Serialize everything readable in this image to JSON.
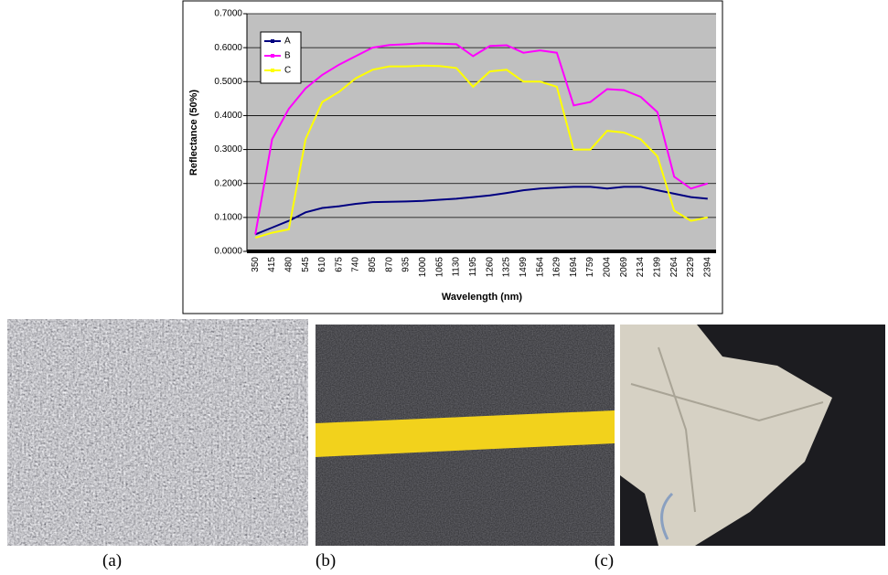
{
  "chart_data": {
    "type": "line",
    "y_label": "Reflectance (50%)",
    "x_label": "Wavelength (nm)",
    "categories": [
      "350",
      "415",
      "480",
      "545",
      "610",
      "675",
      "740",
      "805",
      "870",
      "935",
      "1000",
      "1065",
      "1130",
      "1195",
      "1260",
      "1325",
      "1499",
      "1564",
      "1629",
      "1694",
      "1759",
      "2004",
      "2069",
      "2134",
      "2199",
      "2264",
      "2329",
      "2394"
    ],
    "series": [
      {
        "name": "A",
        "color": "#000080",
        "values": [
          0.05,
          0.07,
          0.09,
          0.115,
          0.128,
          0.133,
          0.14,
          0.145,
          0.146,
          0.147,
          0.149,
          0.152,
          0.155,
          0.16,
          0.165,
          0.172,
          0.18,
          0.185,
          0.188,
          0.19,
          0.19,
          0.185,
          0.19,
          0.19,
          0.18,
          0.17,
          0.16,
          0.155
        ]
      },
      {
        "name": "B",
        "color": "#ff00ff",
        "values": [
          0.05,
          0.33,
          0.42,
          0.48,
          0.52,
          0.55,
          0.575,
          0.6,
          0.608,
          0.61,
          0.613,
          0.612,
          0.61,
          0.575,
          0.605,
          0.607,
          0.585,
          0.592,
          0.585,
          0.43,
          0.44,
          0.478,
          0.475,
          0.455,
          0.41,
          0.22,
          0.185,
          0.2
        ]
      },
      {
        "name": "C",
        "color": "#ffff00",
        "values": [
          0.04,
          0.055,
          0.065,
          0.33,
          0.44,
          0.47,
          0.51,
          0.535,
          0.545,
          0.545,
          0.547,
          0.546,
          0.54,
          0.485,
          0.53,
          0.535,
          0.5,
          0.5,
          0.485,
          0.3,
          0.3,
          0.355,
          0.35,
          0.33,
          0.28,
          0.12,
          0.09,
          0.1
        ]
      }
    ],
    "ylim": [
      0,
      0.7
    ],
    "yticks": [
      {
        "value": 0,
        "label": "0.0000"
      },
      {
        "value": 0.1,
        "label": "0.1000"
      },
      {
        "value": 0.2,
        "label": "0.2000"
      },
      {
        "value": 0.3,
        "label": "0.3000"
      },
      {
        "value": 0.4,
        "label": "0.4000"
      },
      {
        "value": 0.5,
        "label": "0.5000"
      },
      {
        "value": 0.6,
        "label": "0.6000"
      },
      {
        "value": 0.7,
        "label": "0.7000"
      }
    ],
    "grid": true,
    "legend": "upper left"
  },
  "captions": [
    "(a)",
    "(b)",
    "(c)"
  ]
}
